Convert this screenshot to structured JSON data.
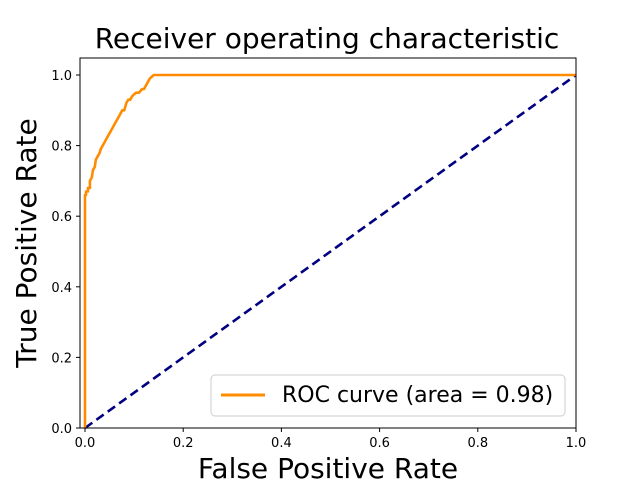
{
  "chart_data": {
    "type": "line",
    "title": "Receiver operating characteristic",
    "xlabel": "False Positive Rate",
    "ylabel": "True Positive Rate",
    "xlim": [
      0,
      1
    ],
    "ylim": [
      0,
      1
    ],
    "xticks": [
      "0.0",
      "0.2",
      "0.4",
      "0.6",
      "0.8",
      "1.0"
    ],
    "yticks": [
      "0.0",
      "0.2",
      "0.4",
      "0.6",
      "0.8",
      "1.0"
    ],
    "grid": false,
    "legend_position": "lower-right",
    "legend_label": "ROC curve (area = 0.98)",
    "series": [
      {
        "name": "ROC curve (area = 0.98)",
        "color": "#ff8c00",
        "style": "solid",
        "x": [
          0.0,
          0.0,
          0.002,
          0.002,
          0.006,
          0.006,
          0.01,
          0.01,
          0.014,
          0.016,
          0.02,
          0.022,
          0.026,
          0.03,
          0.032,
          0.036,
          0.04,
          0.044,
          0.048,
          0.052,
          0.056,
          0.06,
          0.064,
          0.068,
          0.072,
          0.076,
          0.08,
          0.084,
          0.088,
          0.092,
          0.096,
          0.1,
          0.104,
          0.11,
          0.116,
          0.12,
          0.124,
          0.128,
          0.132,
          0.136,
          0.14,
          0.14,
          0.5,
          1.0
        ],
        "y": [
          0.0,
          0.66,
          0.66,
          0.67,
          0.67,
          0.68,
          0.68,
          0.7,
          0.71,
          0.73,
          0.74,
          0.76,
          0.77,
          0.78,
          0.79,
          0.8,
          0.81,
          0.82,
          0.83,
          0.84,
          0.85,
          0.86,
          0.87,
          0.88,
          0.89,
          0.9,
          0.9,
          0.92,
          0.93,
          0.93,
          0.94,
          0.945,
          0.95,
          0.95,
          0.96,
          0.96,
          0.97,
          0.98,
          0.99,
          0.995,
          1.0,
          1.0,
          1.0,
          1.0
        ]
      },
      {
        "name": "",
        "color": "#000080",
        "style": "dashed",
        "x": [
          0,
          1
        ],
        "y": [
          0,
          1
        ]
      }
    ]
  }
}
